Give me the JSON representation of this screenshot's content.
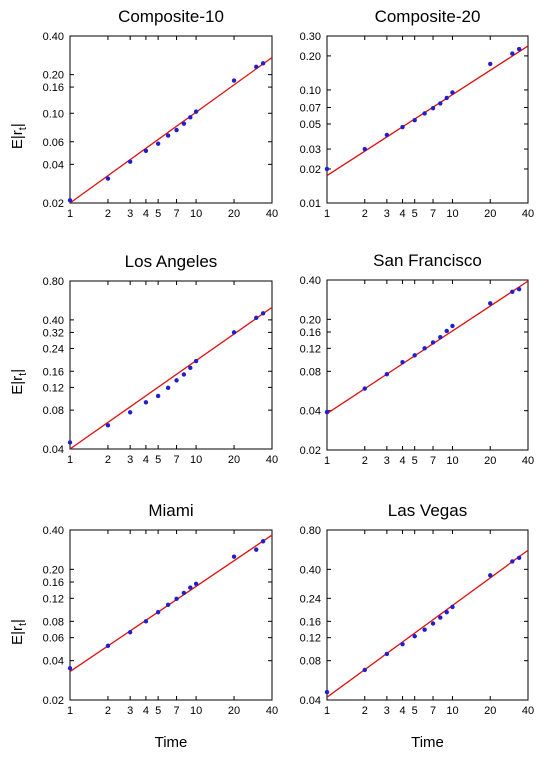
{
  "chart_data": [
    {
      "type": "scatter",
      "title": "Composite-10",
      "xlabel": "",
      "ylabel": "E|r_t|",
      "x_scale": "log",
      "y_scale": "log",
      "xlim": [
        1,
        40
      ],
      "ylim": [
        0.02,
        0.4
      ],
      "x_ticks": [
        1,
        2,
        3,
        4,
        5,
        7,
        10,
        20,
        40
      ],
      "y_ticks": [
        0.02,
        0.04,
        0.06,
        0.1,
        0.16,
        0.2,
        0.4
      ],
      "series": [
        {
          "color": "#1f1fcf",
          "x": [
            1,
            2,
            3,
            4,
            5,
            6,
            7,
            8,
            9,
            10,
            20,
            30,
            34
          ],
          "y": [
            0.021,
            0.031,
            0.042,
            0.051,
            0.058,
            0.067,
            0.074,
            0.083,
            0.093,
            0.103,
            0.18,
            0.23,
            0.245
          ]
        },
        {
          "type": "line",
          "color": "#e01010",
          "x": [
            1,
            40
          ],
          "y": [
            0.02,
            0.272
          ]
        }
      ]
    },
    {
      "type": "scatter",
      "title": "Composite-20",
      "xlabel": "",
      "ylabel": "",
      "x_scale": "log",
      "y_scale": "log",
      "xlim": [
        1,
        40
      ],
      "ylim": [
        0.01,
        0.3
      ],
      "x_ticks": [
        1,
        2,
        3,
        4,
        5,
        7,
        10,
        20,
        40
      ],
      "y_ticks": [
        0.01,
        0.02,
        0.03,
        0.05,
        0.07,
        0.1,
        0.2,
        0.3
      ],
      "series": [
        {
          "color": "#1f1fcf",
          "x": [
            1,
            2,
            3,
            4,
            5,
            6,
            7,
            8,
            9,
            10,
            20,
            30,
            34
          ],
          "y": [
            0.02,
            0.03,
            0.04,
            0.047,
            0.054,
            0.062,
            0.069,
            0.076,
            0.085,
            0.095,
            0.17,
            0.21,
            0.23
          ]
        },
        {
          "type": "line",
          "color": "#e01010",
          "x": [
            1,
            40
          ],
          "y": [
            0.0175,
            0.245
          ]
        }
      ]
    },
    {
      "type": "scatter",
      "title": "Los Angeles",
      "xlabel": "",
      "ylabel": "E|r_t|",
      "x_scale": "log",
      "y_scale": "log",
      "xlim": [
        1,
        40
      ],
      "ylim": [
        0.04,
        0.8
      ],
      "x_ticks": [
        1,
        2,
        3,
        4,
        5,
        7,
        10,
        20,
        40
      ],
      "y_ticks": [
        0.04,
        0.08,
        0.12,
        0.16,
        0.24,
        0.32,
        0.4,
        0.8
      ],
      "series": [
        {
          "color": "#1f1fcf",
          "x": [
            1,
            2,
            3,
            4,
            5,
            6,
            7,
            8,
            9,
            10,
            20,
            30,
            34
          ],
          "y": [
            0.045,
            0.061,
            0.077,
            0.092,
            0.103,
            0.119,
            0.136,
            0.151,
            0.17,
            0.192,
            0.32,
            0.415,
            0.45
          ]
        },
        {
          "type": "line",
          "color": "#e01010",
          "x": [
            1,
            40
          ],
          "y": [
            0.04,
            0.5
          ]
        }
      ]
    },
    {
      "type": "scatter",
      "title": "San Francisco",
      "xlabel": "",
      "ylabel": "",
      "x_scale": "log",
      "y_scale": "log",
      "xlim": [
        1,
        40
      ],
      "ylim": [
        0.02,
        0.4
      ],
      "x_ticks": [
        1,
        2,
        3,
        4,
        5,
        7,
        10,
        20,
        40
      ],
      "y_ticks": [
        0.02,
        0.04,
        0.08,
        0.12,
        0.16,
        0.2,
        0.4
      ],
      "series": [
        {
          "color": "#1f1fcf",
          "x": [
            1,
            2,
            3,
            4,
            5,
            6,
            7,
            8,
            9,
            10,
            20,
            30,
            34
          ],
          "y": [
            0.039,
            0.059,
            0.076,
            0.094,
            0.106,
            0.12,
            0.133,
            0.146,
            0.163,
            0.178,
            0.265,
            0.325,
            0.34
          ]
        },
        {
          "type": "line",
          "color": "#e01010",
          "x": [
            1,
            40
          ],
          "y": [
            0.038,
            0.392
          ]
        }
      ]
    },
    {
      "type": "scatter",
      "title": "Miami",
      "xlabel": "Time",
      "ylabel": "E|r_t|",
      "x_scale": "log",
      "y_scale": "log",
      "xlim": [
        1,
        40
      ],
      "ylim": [
        0.02,
        0.4
      ],
      "x_ticks": [
        1,
        2,
        3,
        4,
        5,
        7,
        10,
        20,
        40
      ],
      "y_ticks": [
        0.02,
        0.04,
        0.06,
        0.08,
        0.12,
        0.16,
        0.2,
        0.4
      ],
      "series": [
        {
          "color": "#1f1fcf",
          "x": [
            1,
            2,
            3,
            4,
            5,
            6,
            7,
            8,
            9,
            10,
            20,
            30,
            34
          ],
          "y": [
            0.035,
            0.052,
            0.066,
            0.08,
            0.094,
            0.107,
            0.119,
            0.132,
            0.145,
            0.155,
            0.25,
            0.283,
            0.328
          ]
        },
        {
          "type": "line",
          "color": "#e01010",
          "x": [
            1,
            40
          ],
          "y": [
            0.033,
            0.366
          ]
        }
      ]
    },
    {
      "type": "scatter",
      "title": "Las Vegas",
      "xlabel": "Time",
      "ylabel": "",
      "x_scale": "log",
      "y_scale": "log",
      "xlim": [
        1,
        40
      ],
      "ylim": [
        0.04,
        0.8
      ],
      "x_ticks": [
        1,
        2,
        3,
        4,
        5,
        7,
        10,
        20,
        40
      ],
      "y_ticks": [
        0.04,
        0.08,
        0.12,
        0.16,
        0.24,
        0.4,
        0.8
      ],
      "series": [
        {
          "color": "#1f1fcf",
          "x": [
            1,
            2,
            3,
            4,
            5,
            6,
            7,
            8,
            9,
            10,
            20,
            30,
            34
          ],
          "y": [
            0.046,
            0.068,
            0.09,
            0.107,
            0.123,
            0.138,
            0.154,
            0.171,
            0.188,
            0.206,
            0.36,
            0.46,
            0.49
          ]
        },
        {
          "type": "line",
          "color": "#e01010",
          "x": [
            1,
            40
          ],
          "y": [
            0.042,
            0.56
          ]
        }
      ]
    }
  ]
}
